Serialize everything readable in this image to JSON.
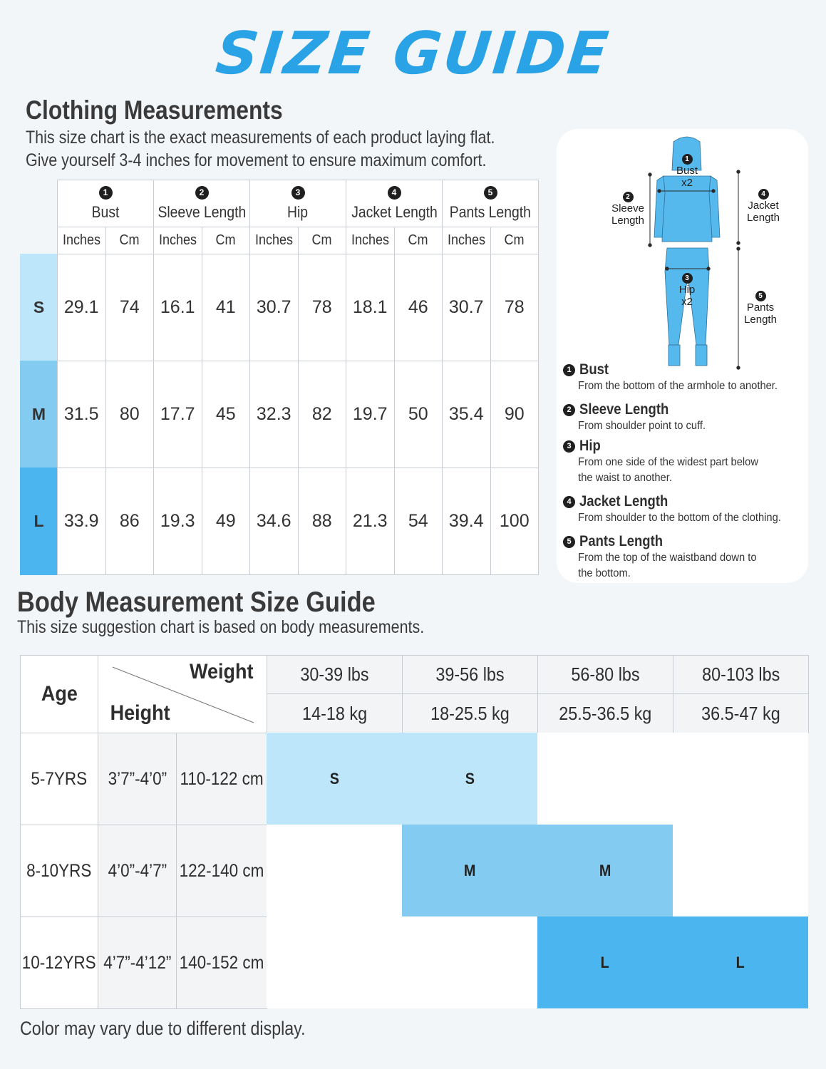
{
  "title": "SIZE GUIDE",
  "clothing": {
    "title": "Clothing Measurements",
    "desc_lines": [
      "This size chart is the exact measurements of each product laying flat.",
      "Give yourself 3-4 inches for movement to ensure maximum comfort."
    ],
    "columns": [
      {
        "num": "1",
        "label": "Bust"
      },
      {
        "num": "2",
        "label": "Sleeve Length"
      },
      {
        "num": "3",
        "label": "Hip"
      },
      {
        "num": "4",
        "label": "Jacket Length"
      },
      {
        "num": "5",
        "label": "Pants Length"
      }
    ],
    "units": [
      "Inches",
      "Cm"
    ],
    "rows": [
      {
        "size": "S",
        "color": "#bde6fb",
        "values": [
          "29.1",
          "74",
          "16.1",
          "41",
          "30.7",
          "78",
          "18.1",
          "46",
          "30.7",
          "78"
        ]
      },
      {
        "size": "M",
        "color": "#84cbf2",
        "values": [
          "31.5",
          "80",
          "17.7",
          "45",
          "32.3",
          "82",
          "19.7",
          "50",
          "35.4",
          "90"
        ]
      },
      {
        "size": "L",
        "color": "#4ab5ef",
        "values": [
          "33.9",
          "86",
          "19.3",
          "49",
          "34.6",
          "88",
          "21.3",
          "54",
          "39.4",
          "100"
        ]
      }
    ]
  },
  "diagram": {
    "garment_color": "#56b9ee",
    "labels": {
      "bust": {
        "num": "1",
        "line1": "Bust",
        "line2": "x2"
      },
      "sleeve": {
        "num": "2",
        "line1": "Sleeve",
        "line2": "Length"
      },
      "hip": {
        "num": "3",
        "line1": "Hip",
        "line2": "x2"
      },
      "jacket": {
        "num": "4",
        "line1": "Jacket",
        "line2": "Length"
      },
      "pants": {
        "num": "5",
        "line1": "Pants",
        "line2": "Length"
      }
    },
    "legend": [
      {
        "num": "1",
        "title": "Bust",
        "desc": "From the bottom of the armhole to another."
      },
      {
        "num": "2",
        "title": "Sleeve Length",
        "desc": "From shoulder point to cuff."
      },
      {
        "num": "3",
        "title": "Hip",
        "desc": "From one side of the widest part below the waist to another."
      },
      {
        "num": "4",
        "title": "Jacket Length",
        "desc": "From shoulder to the bottom of the clothing."
      },
      {
        "num": "5",
        "title": "Pants Length",
        "desc": "From the top of the waistband down to the bottom."
      }
    ]
  },
  "body": {
    "title": "Body Measurement Size Guide",
    "desc": "This size suggestion chart is based on body measurements.",
    "age_label": "Age",
    "weight_label": "Weight",
    "height_label": "Height",
    "weights_lbs": [
      "30-39 lbs",
      "39-56 lbs",
      "56-80 lbs",
      "80-103 lbs"
    ],
    "weights_kg": [
      "14-18 kg",
      "18-25.5 kg",
      "25.5-36.5 kg",
      "36.5-47 kg"
    ],
    "rows": [
      {
        "age": "5-7YRS",
        "height_in": "3’7”-4’0”",
        "height_cm": "110-122 cm",
        "sizes": [
          "S",
          "S",
          "",
          ""
        ],
        "color": "#bde6fb",
        "span": [
          0,
          2
        ]
      },
      {
        "age": "8-10YRS",
        "height_in": "4’0”-4’7”",
        "height_cm": "122-140 cm",
        "sizes": [
          "",
          "M",
          "M",
          ""
        ],
        "color": "#84cbf2",
        "span": [
          1,
          3
        ]
      },
      {
        "age": "10-12YRS",
        "height_in": "4’7”-4’12”",
        "height_cm": "140-152 cm",
        "sizes": [
          "",
          "",
          "L",
          "L"
        ],
        "color": "#4ab5ef",
        "span": [
          2,
          4
        ]
      }
    ],
    "footnote": "Color may vary due to different display."
  }
}
